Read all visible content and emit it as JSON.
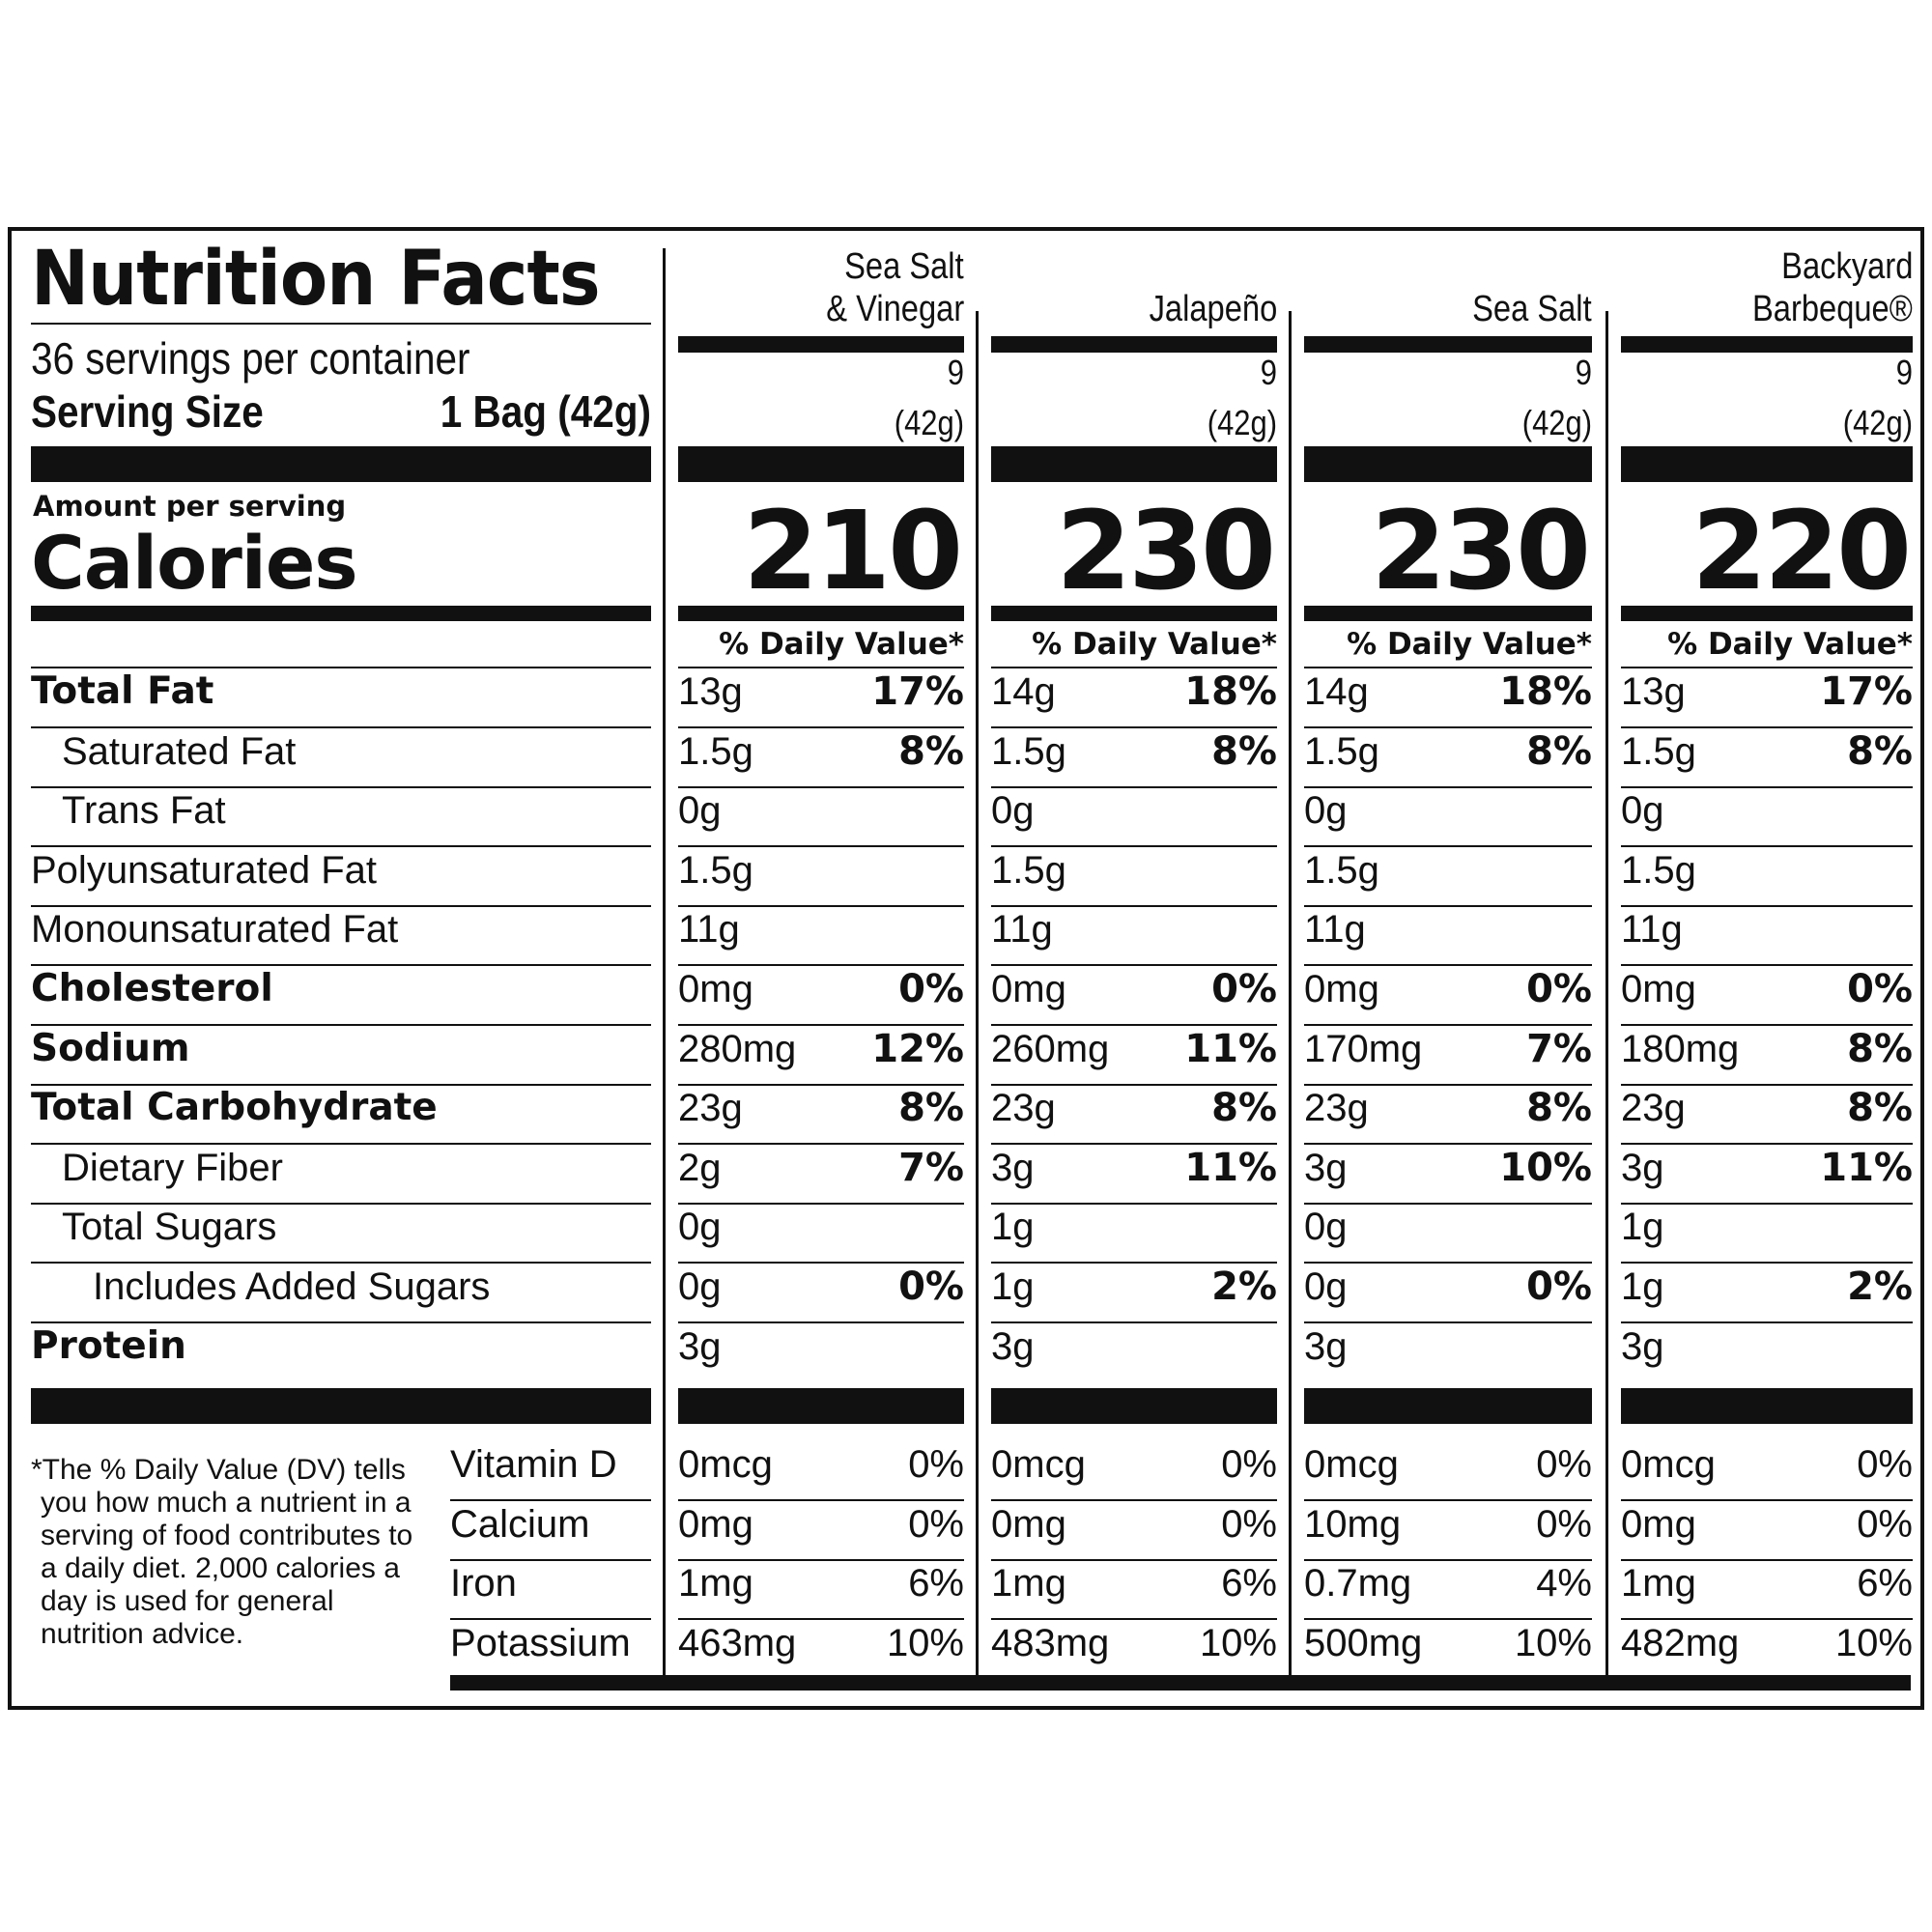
{
  "label": {
    "title": "Nutrition Facts",
    "servings_per_container": "36 servings per container",
    "serving_size_label": "Serving Size",
    "serving_size_value": "1 Bag (42g)",
    "amount_per_serving": "Amount per serving",
    "calories_label": "Calories",
    "daily_value_header": "% Daily Value*",
    "footnote": "*The % Daily Value (DV) tells you how much a nutrient in a serving of food contributes to a daily diet. 2,000 calories a day is used for general nutrition advice."
  },
  "nutrient_labels": [
    "Total Fat",
    "Saturated Fat",
    "Trans Fat",
    "Polyunsaturated Fat",
    "Monounsaturated Fat",
    "Cholesterol",
    "Sodium",
    "Total Carbohydrate",
    "Dietary Fiber",
    "Total Sugars",
    "Includes Added Sugars",
    "Protein"
  ],
  "vitamin_labels": [
    "Vitamin D",
    "Calcium",
    "Iron",
    "Potassium"
  ],
  "columns": [
    {
      "name_line1": "Sea Salt",
      "name_line2": "& Vinegar",
      "servings": "9",
      "serving_weight": "(42g)",
      "calories": "210",
      "nutrients": [
        {
          "amount": "13g",
          "dv": "17%"
        },
        {
          "amount": "1.5g",
          "dv": "8%"
        },
        {
          "amount": "0g",
          "dv": ""
        },
        {
          "amount": "1.5g",
          "dv": ""
        },
        {
          "amount": "11g",
          "dv": ""
        },
        {
          "amount": "0mg",
          "dv": "0%"
        },
        {
          "amount": "280mg",
          "dv": "12%"
        },
        {
          "amount": "23g",
          "dv": "8%"
        },
        {
          "amount": "2g",
          "dv": "7%"
        },
        {
          "amount": "0g",
          "dv": ""
        },
        {
          "amount": "0g",
          "dv": "0%"
        },
        {
          "amount": "3g",
          "dv": ""
        }
      ],
      "vitamins": [
        {
          "amount": "0mcg",
          "dv": "0%"
        },
        {
          "amount": "0mg",
          "dv": "0%"
        },
        {
          "amount": "1mg",
          "dv": "6%"
        },
        {
          "amount": "463mg",
          "dv": "10%"
        }
      ]
    },
    {
      "name_line1": "",
      "name_line2": "Jalapeño",
      "servings": "9",
      "serving_weight": "(42g)",
      "calories": "230",
      "nutrients": [
        {
          "amount": "14g",
          "dv": "18%"
        },
        {
          "amount": "1.5g",
          "dv": "8%"
        },
        {
          "amount": "0g",
          "dv": ""
        },
        {
          "amount": "1.5g",
          "dv": ""
        },
        {
          "amount": "11g",
          "dv": ""
        },
        {
          "amount": "0mg",
          "dv": "0%"
        },
        {
          "amount": "260mg",
          "dv": "11%"
        },
        {
          "amount": "23g",
          "dv": "8%"
        },
        {
          "amount": "3g",
          "dv": "11%"
        },
        {
          "amount": "1g",
          "dv": ""
        },
        {
          "amount": "1g",
          "dv": "2%"
        },
        {
          "amount": "3g",
          "dv": ""
        }
      ],
      "vitamins": [
        {
          "amount": "0mcg",
          "dv": "0%"
        },
        {
          "amount": "0mg",
          "dv": "0%"
        },
        {
          "amount": "1mg",
          "dv": "6%"
        },
        {
          "amount": "483mg",
          "dv": "10%"
        }
      ]
    },
    {
      "name_line1": "",
      "name_line2": "Sea Salt",
      "servings": "9",
      "serving_weight": "(42g)",
      "calories": "230",
      "nutrients": [
        {
          "amount": "14g",
          "dv": "18%"
        },
        {
          "amount": "1.5g",
          "dv": "8%"
        },
        {
          "amount": "0g",
          "dv": ""
        },
        {
          "amount": "1.5g",
          "dv": ""
        },
        {
          "amount": "11g",
          "dv": ""
        },
        {
          "amount": "0mg",
          "dv": "0%"
        },
        {
          "amount": "170mg",
          "dv": "7%"
        },
        {
          "amount": "23g",
          "dv": "8%"
        },
        {
          "amount": "3g",
          "dv": "10%"
        },
        {
          "amount": "0g",
          "dv": ""
        },
        {
          "amount": "0g",
          "dv": "0%"
        },
        {
          "amount": "3g",
          "dv": ""
        }
      ],
      "vitamins": [
        {
          "amount": "0mcg",
          "dv": "0%"
        },
        {
          "amount": "10mg",
          "dv": "0%"
        },
        {
          "amount": "0.7mg",
          "dv": "4%"
        },
        {
          "amount": "500mg",
          "dv": "10%"
        }
      ]
    },
    {
      "name_line1": "Backyard",
      "name_line2": "Barbeque®",
      "servings": "9",
      "serving_weight": "(42g)",
      "calories": "220",
      "nutrients": [
        {
          "amount": "13g",
          "dv": "17%"
        },
        {
          "amount": "1.5g",
          "dv": "8%"
        },
        {
          "amount": "0g",
          "dv": ""
        },
        {
          "amount": "1.5g",
          "dv": ""
        },
        {
          "amount": "11g",
          "dv": ""
        },
        {
          "amount": "0mg",
          "dv": "0%"
        },
        {
          "amount": "180mg",
          "dv": "8%"
        },
        {
          "amount": "23g",
          "dv": "8%"
        },
        {
          "amount": "3g",
          "dv": "11%"
        },
        {
          "amount": "1g",
          "dv": ""
        },
        {
          "amount": "1g",
          "dv": "2%"
        },
        {
          "amount": "3g",
          "dv": ""
        }
      ],
      "vitamins": [
        {
          "amount": "0mcg",
          "dv": "0%"
        },
        {
          "amount": "0mg",
          "dv": "0%"
        },
        {
          "amount": "1mg",
          "dv": "6%"
        },
        {
          "amount": "482mg",
          "dv": "10%"
        }
      ]
    }
  ]
}
